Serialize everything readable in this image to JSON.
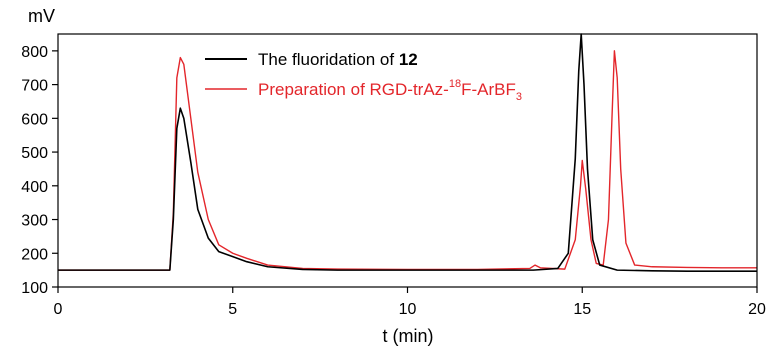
{
  "chart_data": {
    "type": "line",
    "ylabel": "mV",
    "xlabel": "t (min)",
    "xlim": [
      0,
      20
    ],
    "ylim": [
      100,
      850
    ],
    "x_ticks": [
      0,
      5,
      10,
      15,
      20
    ],
    "y_ticks": [
      100,
      200,
      300,
      400,
      500,
      600,
      700,
      800
    ],
    "grid": false,
    "legend": {
      "placement": "top-left",
      "entries": [
        {
          "text_main": "The fluoridation of ",
          "text_bold": "12",
          "color": "#000000"
        },
        {
          "text_main": "Preparation of RGD-trAz-",
          "text_sup": "18",
          "text_after": "F-ArBF",
          "text_sub": "3",
          "color": "#e3262b"
        }
      ]
    },
    "series": [
      {
        "color": "#000000",
        "points": [
          [
            0,
            150
          ],
          [
            1,
            150
          ],
          [
            2,
            150
          ],
          [
            3,
            150
          ],
          [
            3.2,
            150
          ],
          [
            3.3,
            300
          ],
          [
            3.4,
            570
          ],
          [
            3.5,
            630
          ],
          [
            3.6,
            600
          ],
          [
            3.8,
            470
          ],
          [
            4.0,
            330
          ],
          [
            4.3,
            245
          ],
          [
            4.6,
            205
          ],
          [
            5,
            190
          ],
          [
            5.4,
            175
          ],
          [
            6,
            160
          ],
          [
            7,
            152
          ],
          [
            8,
            150
          ],
          [
            10,
            150
          ],
          [
            12,
            150
          ],
          [
            13.6,
            150
          ],
          [
            14.3,
            155
          ],
          [
            14.6,
            200
          ],
          [
            14.8,
            480
          ],
          [
            14.9,
            740
          ],
          [
            14.97,
            850
          ],
          [
            15.05,
            700
          ],
          [
            15.15,
            450
          ],
          [
            15.3,
            240
          ],
          [
            15.5,
            165
          ],
          [
            16,
            150
          ],
          [
            17,
            148
          ],
          [
            18,
            147
          ],
          [
            19,
            147
          ],
          [
            20,
            147
          ]
        ]
      },
      {
        "color": "#e3262b",
        "points": [
          [
            0,
            150
          ],
          [
            1,
            150
          ],
          [
            2,
            150
          ],
          [
            3,
            150
          ],
          [
            3.2,
            150
          ],
          [
            3.3,
            320
          ],
          [
            3.4,
            720
          ],
          [
            3.5,
            780
          ],
          [
            3.6,
            760
          ],
          [
            3.8,
            600
          ],
          [
            4.0,
            440
          ],
          [
            4.3,
            300
          ],
          [
            4.6,
            225
          ],
          [
            5,
            200
          ],
          [
            5.4,
            185
          ],
          [
            6,
            165
          ],
          [
            7,
            155
          ],
          [
            8,
            153
          ],
          [
            10,
            152
          ],
          [
            12,
            152
          ],
          [
            13.5,
            155
          ],
          [
            13.65,
            165
          ],
          [
            13.8,
            157
          ],
          [
            14.5,
            153
          ],
          [
            14.8,
            240
          ],
          [
            14.95,
            400
          ],
          [
            15.0,
            475
          ],
          [
            15.1,
            390
          ],
          [
            15.25,
            240
          ],
          [
            15.4,
            170
          ],
          [
            15.6,
            165
          ],
          [
            15.75,
            300
          ],
          [
            15.85,
            600
          ],
          [
            15.92,
            800
          ],
          [
            16.0,
            720
          ],
          [
            16.1,
            450
          ],
          [
            16.25,
            230
          ],
          [
            16.5,
            165
          ],
          [
            17,
            160
          ],
          [
            18,
            158
          ],
          [
            19,
            157
          ],
          [
            20,
            157
          ]
        ]
      }
    ]
  }
}
